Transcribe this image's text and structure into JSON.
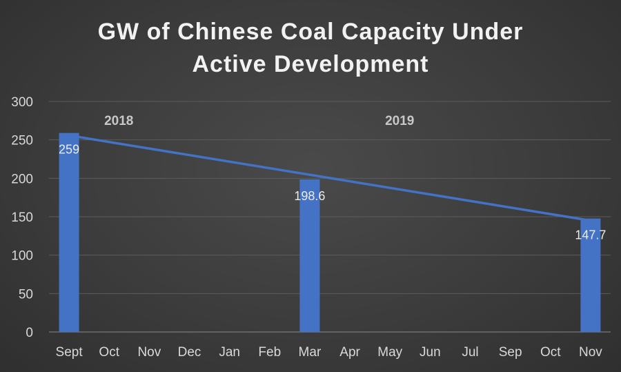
{
  "chart_data": {
    "type": "bar",
    "title_lines": [
      "GW of Chinese Coal Capacity Under",
      "Active Development"
    ],
    "categories": [
      "Sept",
      "Oct",
      "Nov",
      "Dec",
      "Jan",
      "Feb",
      "Mar",
      "Apr",
      "May",
      "Jun",
      "Jul",
      "Sep",
      "Oct",
      "Nov"
    ],
    "values": [
      259,
      null,
      null,
      null,
      null,
      null,
      198.6,
      null,
      null,
      null,
      null,
      null,
      null,
      147.7
    ],
    "data_labels": [
      "259",
      "",
      "",
      "",
      "",
      "",
      "198.6",
      "",
      "",
      "",
      "",
      "",
      "",
      "147.7"
    ],
    "trendline": {
      "type": "linear",
      "color": "#4472c4"
    },
    "year_annotations": [
      {
        "text": "2018",
        "category_index": 1
      },
      {
        "text": "2019",
        "category_index": 8
      }
    ],
    "ylim": [
      0,
      300
    ],
    "yticks": [
      0,
      50,
      100,
      150,
      200,
      250,
      300
    ],
    "grid": true,
    "xlabel": "",
    "ylabel": "",
    "colors": {
      "bar": "#4472c4",
      "trendline": "#4472c4",
      "background": "#3a3a3a",
      "text": "#d9d9d9"
    }
  }
}
